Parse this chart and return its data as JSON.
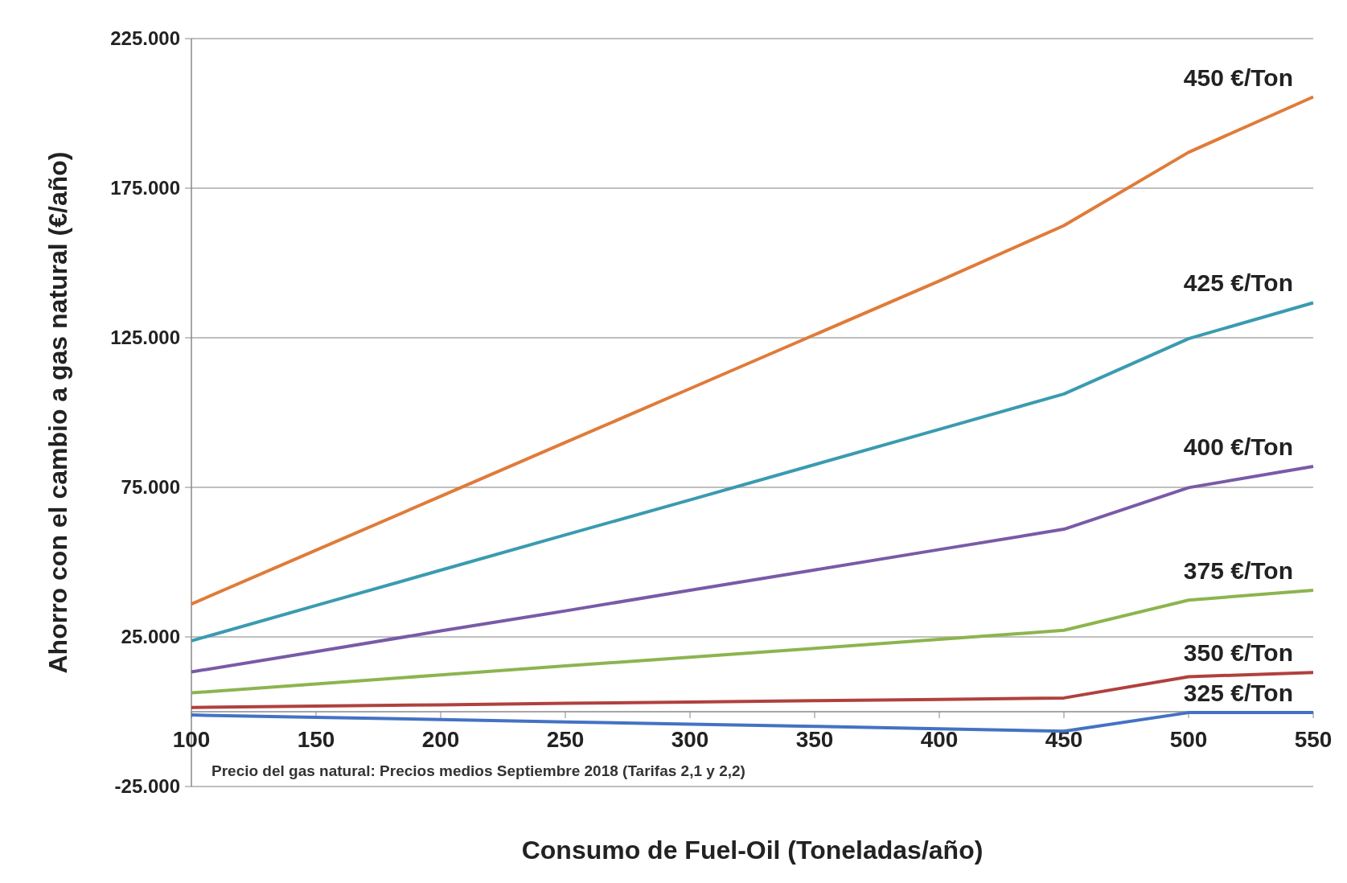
{
  "chart_data": {
    "type": "line",
    "xlabel": "Consumo de Fuel-Oil (Toneladas/año)",
    "ylabel": "Ahorro con el cambio a gas natural (€/año)",
    "x": [
      100,
      150,
      200,
      250,
      300,
      350,
      400,
      450,
      500,
      550
    ],
    "xlim": [
      100,
      550
    ],
    "xticks": [
      100,
      150,
      200,
      250,
      300,
      350,
      400,
      450,
      500,
      550
    ],
    "ylim": [
      -25000,
      225000
    ],
    "yticks": [
      {
        "value": -25000,
        "label": "-25.000"
      },
      {
        "value": 25000,
        "label": "25.000"
      },
      {
        "value": 75000,
        "label": "75.000"
      },
      {
        "value": 125000,
        "label": "125.000"
      },
      {
        "value": 175000,
        "label": "175.000"
      },
      {
        "value": 225000,
        "label": "225.000"
      }
    ],
    "grid": "y",
    "line_style": "solid",
    "marker": "none",
    "annotations": [
      "Precio del gas natural: Precios medios Septiembre 2018 (Tarifas 2,1 y 2,2)"
    ],
    "series": [
      {
        "name": "450 €/Ton",
        "color": "#e07b39",
        "values": [
          36000,
          54000,
          72000,
          90000,
          108000,
          126000,
          144000,
          162500,
          187000,
          205500
        ]
      },
      {
        "name": "425 €/Ton",
        "color": "#3a9bb0",
        "values": [
          23700,
          35500,
          47300,
          59100,
          70800,
          82600,
          94400,
          106200,
          124700,
          136700
        ]
      },
      {
        "name": "400 €/Ton",
        "color": "#7a5aa6",
        "values": [
          13300,
          20100,
          27000,
          33700,
          40600,
          47400,
          54200,
          61000,
          74900,
          82000
        ]
      },
      {
        "name": "375 €/Ton",
        "color": "#8db44e",
        "values": [
          6300,
          9300,
          12300,
          15300,
          18200,
          21200,
          24200,
          27200,
          37300,
          40600
        ]
      },
      {
        "name": "350 €/Ton",
        "color": "#b0413e",
        "values": [
          1400,
          1900,
          2300,
          2800,
          3200,
          3700,
          4100,
          4600,
          11700,
          13100
        ]
      },
      {
        "name": "325 €/Ton",
        "color": "#4472c4",
        "values": [
          -1100,
          -1900,
          -2600,
          -3400,
          -4200,
          -4900,
          -5700,
          -6500,
          -300,
          -300
        ]
      }
    ]
  }
}
